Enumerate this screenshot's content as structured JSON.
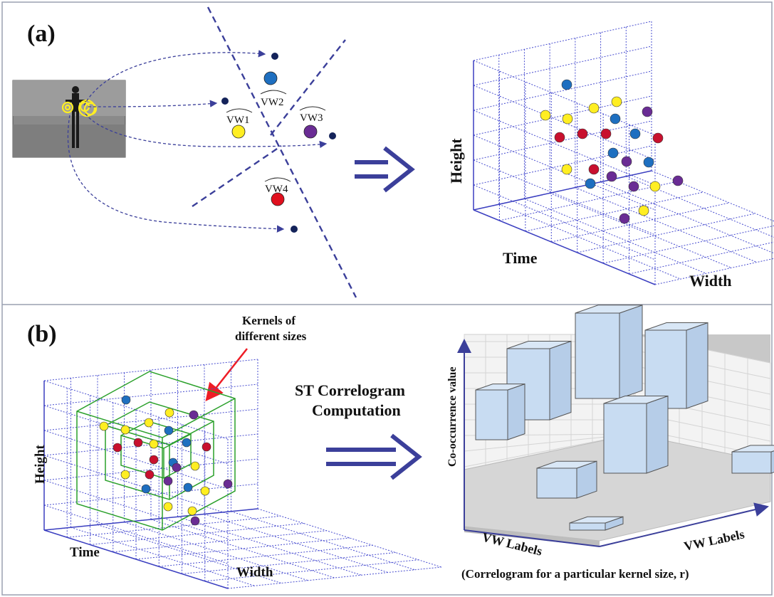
{
  "panel_a": {
    "label": "(a)",
    "vw_labels": [
      "VW1",
      "VW2",
      "VW3",
      "VW4"
    ],
    "axes": {
      "height": "Height",
      "time": "Time",
      "width": "Width"
    }
  },
  "panel_b": {
    "label": "(b)",
    "kernel_note_line1": "Kernels of",
    "kernel_note_line2": "different sizes",
    "axes": {
      "height": "Height",
      "time": "Time",
      "width": "Width"
    },
    "step_line1": "ST Correlogram",
    "step_line2": "Computation",
    "correlogram": {
      "z_label": "Co-occurrence value",
      "x_label": "VW Labels",
      "y_label": "VW Labels",
      "caption": "(Correlogram for a particular kernel size, r)"
    }
  },
  "colors": {
    "vw1": "#ffee22",
    "vw2": "#1e6fc0",
    "vw3": "#6a2c94",
    "vw4": "#c8102e",
    "arrow": "#3b3f9a",
    "grid": "#4a4fd0",
    "kernel": "#2aa02a",
    "bar": "#c8dcf2"
  }
}
